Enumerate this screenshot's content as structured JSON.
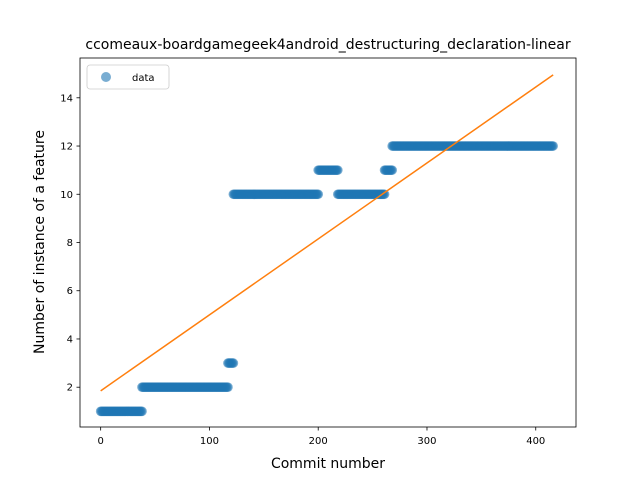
{
  "chart_data": {
    "type": "scatter",
    "title": "ccomeaux-boardgamegeek4android_destructuring_declaration-linear",
    "xlabel": "Commit number",
    "ylabel": "Number of instance of a feature",
    "xlim": [
      -19,
      437
    ],
    "ylim": [
      0.35,
      15.65
    ],
    "xticks": [
      0,
      100,
      200,
      300,
      400
    ],
    "yticks": [
      2,
      4,
      6,
      8,
      10,
      12,
      14
    ],
    "grid": false,
    "legend": {
      "position": "top-left",
      "entries": [
        "data"
      ]
    },
    "colors": {
      "data": "#1f77b4",
      "fit": "#ff7f0e"
    },
    "series": [
      {
        "name": "data",
        "kind": "points",
        "segments": [
          {
            "x_start": 0,
            "x_end": 38,
            "y": 1
          },
          {
            "x_start": 38,
            "x_end": 117,
            "y": 2
          },
          {
            "x_start": 117,
            "x_end": 122,
            "y": 3
          },
          {
            "x_start": 122,
            "x_end": 200,
            "y": 10
          },
          {
            "x_start": 200,
            "x_end": 218,
            "y": 11
          },
          {
            "x_start": 218,
            "x_end": 261,
            "y": 10
          },
          {
            "x_start": 261,
            "x_end": 268,
            "y": 11
          },
          {
            "x_start": 268,
            "x_end": 416,
            "y": 12
          }
        ]
      },
      {
        "kind": "line",
        "x": [
          0,
          416
        ],
        "y": [
          1.85,
          14.95
        ]
      }
    ]
  }
}
